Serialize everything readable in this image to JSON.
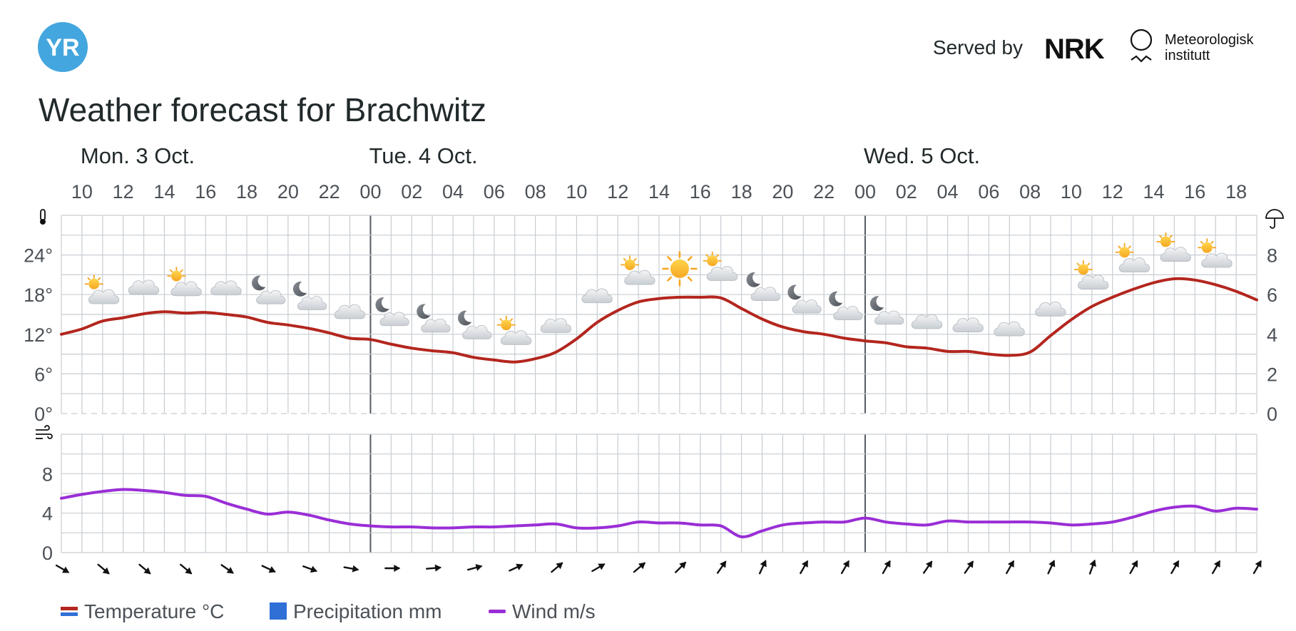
{
  "header": {
    "yr_logo_text": "YR",
    "served_by": "Served by",
    "nrk_logo_text": "NRK",
    "met_line1": "Meteorologisk",
    "met_line2": "institutt",
    "title": "Weather forecast for Brachwitz"
  },
  "days": [
    {
      "label": "Mon. 3 Oct.",
      "hour": 10
    },
    {
      "label": "Tue. 4 Oct.",
      "hour": 24
    },
    {
      "label": "Wed. 5 Oct.",
      "hour": 48
    }
  ],
  "legend": {
    "temperature": "Temperature °C",
    "precipitation": "Precipitation mm",
    "wind": "Wind m/s"
  },
  "colors": {
    "temperature": "#b3261e",
    "temperature_below": "#2f6fd6",
    "precipitation": "#2f6fd6",
    "wind": "#9a2ed6",
    "grid": "#c8cdd2",
    "yr_logo": "#44a6de"
  },
  "chart_data": [
    {
      "type": "line",
      "name": "temperature-precipitation",
      "x_unit": "hours from Mon 3 Oct 00:00",
      "xlim": [
        9,
        67
      ],
      "x_ticks": [
        10,
        12,
        14,
        16,
        18,
        20,
        22,
        24,
        26,
        28,
        30,
        32,
        34,
        36,
        38,
        40,
        42,
        44,
        46,
        48,
        50,
        52,
        54,
        56,
        58,
        60,
        62,
        64,
        66
      ],
      "x_tick_labels": [
        "10",
        "12",
        "14",
        "16",
        "18",
        "20",
        "22",
        "00",
        "02",
        "04",
        "06",
        "08",
        "10",
        "12",
        "14",
        "16",
        "18",
        "20",
        "22",
        "00",
        "02",
        "04",
        "06",
        "08",
        "10",
        "12",
        "14",
        "16",
        "18"
      ],
      "ylim_left": [
        0,
        30
      ],
      "y_ticks_left": [
        0,
        6,
        12,
        18,
        24
      ],
      "y_tick_labels_left": [
        "0°",
        "6°",
        "12°",
        "18°",
        "24°"
      ],
      "ylim_right": [
        0,
        10
      ],
      "y_ticks_right": [
        0,
        2,
        4,
        6,
        8
      ],
      "y_tick_labels_right": [
        "0",
        "2",
        "4",
        "6",
        "8"
      ],
      "grid": true,
      "series": [
        {
          "name": "Temperature °C",
          "points": [
            [
              9,
              12
            ],
            [
              10,
              12.8
            ],
            [
              11,
              14
            ],
            [
              12,
              14.5
            ],
            [
              13,
              15.1
            ],
            [
              14,
              15.4
            ],
            [
              15,
              15.2
            ],
            [
              16,
              15.3
            ],
            [
              17,
              15
            ],
            [
              18,
              14.6
            ],
            [
              19,
              13.8
            ],
            [
              20,
              13.4
            ],
            [
              21,
              12.9
            ],
            [
              22,
              12.2
            ],
            [
              23,
              11.4
            ],
            [
              24,
              11.2
            ],
            [
              25,
              10.5
            ],
            [
              26,
              9.9
            ],
            [
              27,
              9.5
            ],
            [
              28,
              9.2
            ],
            [
              29,
              8.5
            ],
            [
              30,
              8.1
            ],
            [
              31,
              7.8
            ],
            [
              32,
              8.3
            ],
            [
              33,
              9.3
            ],
            [
              34,
              11.3
            ],
            [
              35,
              13.8
            ],
            [
              36,
              15.6
            ],
            [
              37,
              16.9
            ],
            [
              38,
              17.4
            ],
            [
              39,
              17.6
            ],
            [
              40,
              17.6
            ],
            [
              41,
              17.5
            ],
            [
              42,
              15.9
            ],
            [
              43,
              14.3
            ],
            [
              44,
              13.1
            ],
            [
              45,
              12.4
            ],
            [
              46,
              12
            ],
            [
              47,
              11.4
            ],
            [
              48,
              11
            ],
            [
              49,
              10.7
            ],
            [
              50,
              10.1
            ],
            [
              51,
              9.9
            ],
            [
              52,
              9.4
            ],
            [
              53,
              9.4
            ],
            [
              54,
              9
            ],
            [
              55,
              8.8
            ],
            [
              56,
              9.3
            ],
            [
              57,
              11.8
            ],
            [
              58,
              14.2
            ],
            [
              59,
              16.2
            ],
            [
              60,
              17.6
            ],
            [
              61,
              18.8
            ],
            [
              62,
              19.8
            ],
            [
              63,
              20.4
            ],
            [
              64,
              20.2
            ],
            [
              65,
              19.5
            ],
            [
              66,
              18.5
            ],
            [
              67,
              17.2
            ]
          ]
        }
      ],
      "symbols": [
        {
          "hour": 11,
          "icon": "partly-cloudy-day-icon"
        },
        {
          "hour": 13,
          "icon": "cloud-icon"
        },
        {
          "hour": 15,
          "icon": "partly-cloudy-day-icon"
        },
        {
          "hour": 17,
          "icon": "cloud-icon"
        },
        {
          "hour": 19,
          "icon": "partly-cloudy-night-icon"
        },
        {
          "hour": 21,
          "icon": "partly-cloudy-night-icon"
        },
        {
          "hour": 23,
          "icon": "cloud-icon"
        },
        {
          "hour": 25,
          "icon": "partly-cloudy-night-icon"
        },
        {
          "hour": 27,
          "icon": "partly-cloudy-night-icon"
        },
        {
          "hour": 29,
          "icon": "partly-cloudy-night-icon"
        },
        {
          "hour": 31,
          "icon": "partly-cloudy-day-icon"
        },
        {
          "hour": 33,
          "icon": "cloud-icon"
        },
        {
          "hour": 35,
          "icon": "cloud-icon"
        },
        {
          "hour": 37,
          "icon": "partly-cloudy-day-icon"
        },
        {
          "hour": 39,
          "icon": "sun-icon"
        },
        {
          "hour": 41,
          "icon": "partly-cloudy-day-icon"
        },
        {
          "hour": 43,
          "icon": "partly-cloudy-night-icon"
        },
        {
          "hour": 45,
          "icon": "partly-cloudy-night-icon"
        },
        {
          "hour": 47,
          "icon": "partly-cloudy-night-icon"
        },
        {
          "hour": 49,
          "icon": "partly-cloudy-night-icon"
        },
        {
          "hour": 51,
          "icon": "cloud-icon"
        },
        {
          "hour": 53,
          "icon": "cloud-icon"
        },
        {
          "hour": 55,
          "icon": "cloud-icon"
        },
        {
          "hour": 57,
          "icon": "cloud-icon"
        },
        {
          "hour": 59,
          "icon": "partly-cloudy-day-icon"
        },
        {
          "hour": 61,
          "icon": "partly-cloudy-day-icon"
        },
        {
          "hour": 63,
          "icon": "partly-cloudy-day-icon"
        },
        {
          "hour": 65,
          "icon": "partly-cloudy-day-icon"
        }
      ]
    },
    {
      "type": "line",
      "name": "wind",
      "x_unit": "hours from Mon 3 Oct 00:00",
      "xlim": [
        9,
        67
      ],
      "ylim": [
        0,
        12
      ],
      "y_ticks": [
        0,
        4,
        8
      ],
      "y_tick_labels": [
        "0",
        "4",
        "8"
      ],
      "grid": true,
      "series": [
        {
          "name": "Wind m/s",
          "points": [
            [
              9,
              5.5
            ],
            [
              10,
              5.9
            ],
            [
              11,
              6.2
            ],
            [
              12,
              6.4
            ],
            [
              13,
              6.3
            ],
            [
              14,
              6.1
            ],
            [
              15,
              5.8
            ],
            [
              16,
              5.7
            ],
            [
              17,
              5
            ],
            [
              18,
              4.4
            ],
            [
              19,
              3.9
            ],
            [
              20,
              4.1
            ],
            [
              21,
              3.8
            ],
            [
              22,
              3.3
            ],
            [
              23,
              2.9
            ],
            [
              24,
              2.7
            ],
            [
              25,
              2.6
            ],
            [
              26,
              2.6
            ],
            [
              27,
              2.5
            ],
            [
              28,
              2.5
            ],
            [
              29,
              2.6
            ],
            [
              30,
              2.6
            ],
            [
              31,
              2.7
            ],
            [
              32,
              2.8
            ],
            [
              33,
              2.9
            ],
            [
              34,
              2.5
            ],
            [
              35,
              2.5
            ],
            [
              36,
              2.7
            ],
            [
              37,
              3.1
            ],
            [
              38,
              3
            ],
            [
              39,
              3
            ],
            [
              40,
              2.8
            ],
            [
              41,
              2.7
            ],
            [
              42,
              1.6
            ],
            [
              43,
              2.2
            ],
            [
              44,
              2.8
            ],
            [
              45,
              3
            ],
            [
              46,
              3.1
            ],
            [
              47,
              3.1
            ],
            [
              48,
              3.5
            ],
            [
              49,
              3.1
            ],
            [
              50,
              2.9
            ],
            [
              51,
              2.8
            ],
            [
              52,
              3.2
            ],
            [
              53,
              3.1
            ],
            [
              54,
              3.1
            ],
            [
              55,
              3.1
            ],
            [
              56,
              3.1
            ],
            [
              57,
              3
            ],
            [
              58,
              2.8
            ],
            [
              59,
              2.9
            ],
            [
              60,
              3.1
            ],
            [
              61,
              3.6
            ],
            [
              62,
              4.2
            ],
            [
              63,
              4.6
            ],
            [
              64,
              4.7
            ],
            [
              65,
              4.2
            ],
            [
              66,
              4.5
            ],
            [
              67,
              4.4
            ]
          ]
        }
      ],
      "wind_directions_from_deg": [
        {
          "hour": 9,
          "deg": 300
        },
        {
          "hour": 11,
          "deg": 310
        },
        {
          "hour": 13,
          "deg": 310
        },
        {
          "hour": 15,
          "deg": 310
        },
        {
          "hour": 17,
          "deg": 305
        },
        {
          "hour": 19,
          "deg": 295
        },
        {
          "hour": 21,
          "deg": 290
        },
        {
          "hour": 23,
          "deg": 280
        },
        {
          "hour": 25,
          "deg": 270
        },
        {
          "hour": 27,
          "deg": 265
        },
        {
          "hour": 29,
          "deg": 255
        },
        {
          "hour": 31,
          "deg": 245
        },
        {
          "hour": 33,
          "deg": 230
        },
        {
          "hour": 35,
          "deg": 240
        },
        {
          "hour": 37,
          "deg": 230
        },
        {
          "hour": 39,
          "deg": 225
        },
        {
          "hour": 41,
          "deg": 215
        },
        {
          "hour": 43,
          "deg": 205
        },
        {
          "hour": 45,
          "deg": 210
        },
        {
          "hour": 47,
          "deg": 210
        },
        {
          "hour": 49,
          "deg": 210
        },
        {
          "hour": 51,
          "deg": 215
        },
        {
          "hour": 53,
          "deg": 215
        },
        {
          "hour": 55,
          "deg": 210
        },
        {
          "hour": 57,
          "deg": 205
        },
        {
          "hour": 59,
          "deg": 200
        },
        {
          "hour": 61,
          "deg": 210
        },
        {
          "hour": 63,
          "deg": 210
        },
        {
          "hour": 65,
          "deg": 210
        },
        {
          "hour": 67,
          "deg": 210
        }
      ]
    }
  ]
}
